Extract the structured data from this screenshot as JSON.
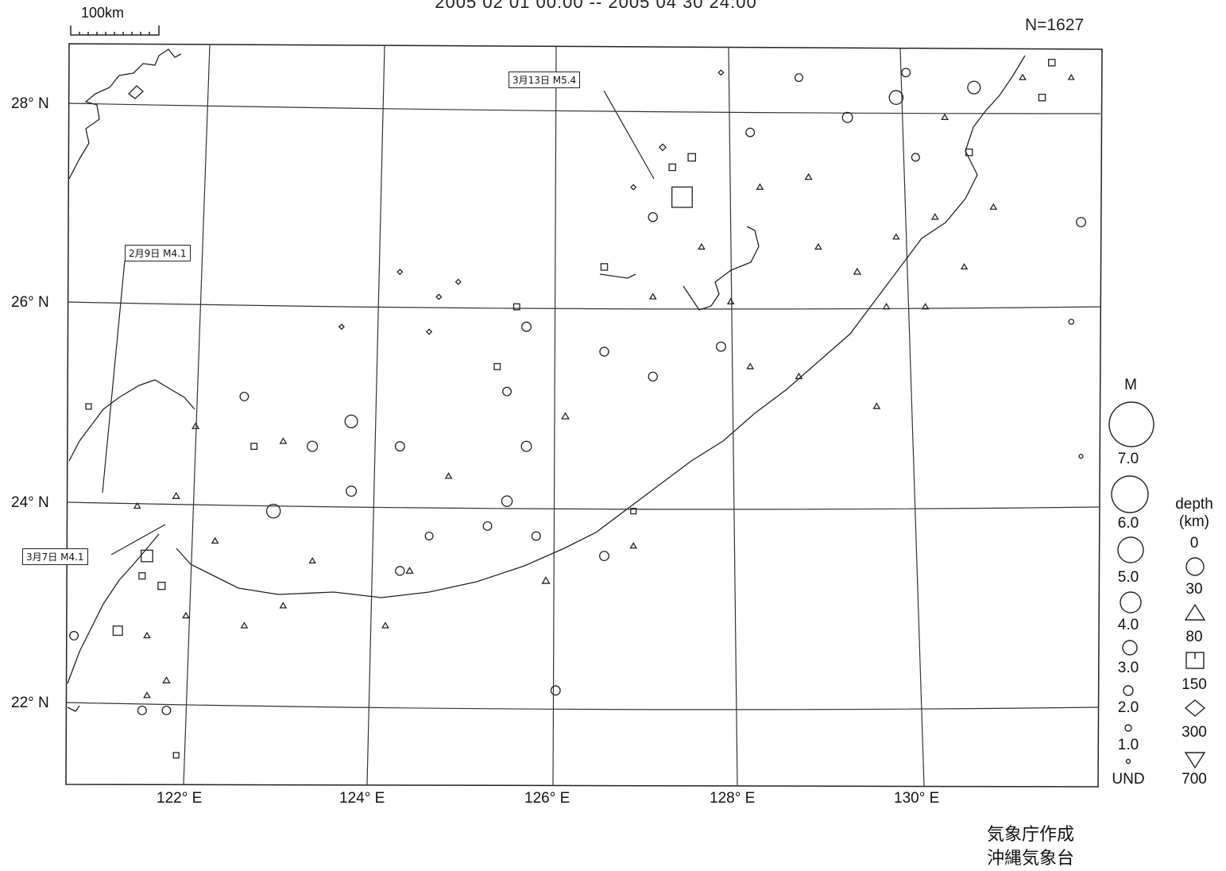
{
  "header": {
    "title": "2005 02 01 00:00 -- 2005 04 30 24:00",
    "count": "N=1627",
    "scale_label": "100km"
  },
  "axes": {
    "lat_labels": [
      "28° N",
      "26° N",
      "24° N",
      "22° N"
    ],
    "lon_labels": [
      "122° E",
      "124° E",
      "126° E",
      "128° E",
      "130° E"
    ]
  },
  "callouts": [
    {
      "text": "3月13日 M5.4"
    },
    {
      "text": "2月9日 M4.1"
    },
    {
      "text": "3月7日 M4.1"
    }
  ],
  "legend": {
    "magnitude_title": "M",
    "magnitude_labels": [
      "7.0",
      "6.0",
      "5.0",
      "4.0",
      "3.0",
      "2.0",
      "1.0",
      "UND"
    ],
    "depth_title_line1": "depth",
    "depth_title_line2": "(km)",
    "depth_labels": [
      "0",
      "30",
      "80",
      "150",
      "300",
      "700"
    ],
    "depth_symbols": [
      "circle",
      "triangle",
      "square",
      "diamond",
      "inverted-triangle"
    ]
  },
  "credit": {
    "line1": "気象庁作成",
    "line2": "沖縄気象台"
  },
  "map_data": {
    "lat_range": [
      21.2,
      28.6
    ],
    "lon_range": [
      120.8,
      131.4
    ],
    "events": [
      {
        "lon": 122.9,
        "lat": 23.95,
        "mag": 4.5,
        "depth": "circle"
      },
      {
        "lon": 123.7,
        "lat": 24.85,
        "mag": 4.3,
        "depth": "circle"
      },
      {
        "lon": 129.3,
        "lat": 28.1,
        "mag": 4.5,
        "depth": "circle"
      },
      {
        "lon": 130.1,
        "lat": 28.2,
        "mag": 4.3,
        "depth": "circle"
      },
      {
        "lon": 125.3,
        "lat": 24.05,
        "mag": 3.9,
        "depth": "circle"
      },
      {
        "lon": 124.2,
        "lat": 24.6,
        "mag": 3.6,
        "depth": "circle"
      },
      {
        "lon": 123.3,
        "lat": 24.6,
        "mag": 3.8,
        "depth": "circle"
      },
      {
        "lon": 123.7,
        "lat": 24.15,
        "mag": 3.8,
        "depth": "circle"
      },
      {
        "lon": 128.8,
        "lat": 27.9,
        "mag": 3.8,
        "depth": "circle"
      },
      {
        "lon": 125.5,
        "lat": 24.6,
        "mag": 3.8,
        "depth": "circle"
      },
      {
        "lon": 127.1,
        "lat": 27.1,
        "mag": 5.4,
        "depth": "square"
      },
      {
        "lon": 121.6,
        "lat": 23.5,
        "mag": 4.1,
        "depth": "square"
      },
      {
        "lon": 121.3,
        "lat": 22.75,
        "mag": 3.6,
        "depth": "square"
      },
      {
        "lon": 124.2,
        "lat": 23.35,
        "mag": 3.5,
        "depth": "circle"
      },
      {
        "lon": 126.3,
        "lat": 23.5,
        "mag": 3.6,
        "depth": "circle"
      },
      {
        "lon": 125.8,
        "lat": 22.15,
        "mag": 3.6,
        "depth": "circle"
      },
      {
        "lon": 131.2,
        "lat": 26.85,
        "mag": 3.6,
        "depth": "circle"
      },
      {
        "lon": 125.3,
        "lat": 25.15,
        "mag": 3.4,
        "depth": "circle"
      },
      {
        "lon": 126.8,
        "lat": 25.3,
        "mag": 3.5,
        "depth": "circle"
      },
      {
        "lon": 127.5,
        "lat": 25.6,
        "mag": 3.6,
        "depth": "circle"
      },
      {
        "lon": 125.5,
        "lat": 25.8,
        "mag": 3.6,
        "depth": "circle"
      },
      {
        "lon": 126.3,
        "lat": 25.55,
        "mag": 3.5,
        "depth": "circle"
      },
      {
        "lon": 121.55,
        "lat": 21.95,
        "mag": 3.4,
        "depth": "circle"
      },
      {
        "lon": 121.8,
        "lat": 21.95,
        "mag": 3.4,
        "depth": "circle"
      },
      {
        "lon": 120.85,
        "lat": 22.7,
        "mag": 3.4,
        "depth": "circle"
      },
      {
        "lon": 126.8,
        "lat": 26.9,
        "mag": 3.5,
        "depth": "circle"
      },
      {
        "lon": 127.8,
        "lat": 27.75,
        "mag": 3.4,
        "depth": "circle"
      },
      {
        "lon": 129.5,
        "lat": 27.5,
        "mag": 3.2,
        "depth": "circle"
      },
      {
        "lon": 125.1,
        "lat": 23.8,
        "mag": 3.4,
        "depth": "circle"
      },
      {
        "lon": 125.6,
        "lat": 23.7,
        "mag": 3.4,
        "depth": "circle"
      },
      {
        "lon": 124.5,
        "lat": 23.7,
        "mag": 3.2,
        "depth": "circle"
      },
      {
        "lon": 122.6,
        "lat": 25.1,
        "mag": 3.4,
        "depth": "circle"
      },
      {
        "lon": 129.4,
        "lat": 28.35,
        "mag": 3.4,
        "depth": "circle"
      },
      {
        "lon": 128.3,
        "lat": 28.3,
        "mag": 3.2,
        "depth": "circle"
      },
      {
        "lon": 121.9,
        "lat": 24.1,
        "mag": 2.8,
        "depth": "triangle"
      },
      {
        "lon": 125.9,
        "lat": 24.9,
        "mag": 2.9,
        "depth": "triangle"
      },
      {
        "lon": 128.9,
        "lat": 26.35,
        "mag": 2.8,
        "depth": "triangle"
      },
      {
        "lon": 129.6,
        "lat": 26.0,
        "mag": 2.6,
        "depth": "triangle"
      },
      {
        "lon": 128.4,
        "lat": 27.3,
        "mag": 2.7,
        "depth": "triangle"
      },
      {
        "lon": 130.3,
        "lat": 27.0,
        "mag": 2.6,
        "depth": "triangle"
      },
      {
        "lon": 125.7,
        "lat": 23.25,
        "mag": 3.0,
        "depth": "triangle"
      },
      {
        "lon": 124.3,
        "lat": 23.35,
        "mag": 2.8,
        "depth": "triangle"
      },
      {
        "lon": 122.3,
        "lat": 23.65,
        "mag": 2.6,
        "depth": "triangle"
      },
      {
        "lon": 123.0,
        "lat": 24.65,
        "mag": 2.6,
        "depth": "triangle"
      },
      {
        "lon": 124.7,
        "lat": 24.3,
        "mag": 2.6,
        "depth": "triangle"
      },
      {
        "lon": 128.3,
        "lat": 25.3,
        "mag": 2.6,
        "depth": "triangle"
      },
      {
        "lon": 129.1,
        "lat": 25.0,
        "mag": 2.6,
        "depth": "triangle"
      },
      {
        "lon": 127.8,
        "lat": 25.4,
        "mag": 2.6,
        "depth": "triangle"
      },
      {
        "lon": 121.5,
        "lat": 24.0,
        "mag": 2.6,
        "depth": "triangle"
      },
      {
        "lon": 121.6,
        "lat": 22.7,
        "mag": 2.6,
        "depth": "triangle"
      },
      {
        "lon": 121.8,
        "lat": 22.25,
        "mag": 2.8,
        "depth": "triangle"
      },
      {
        "lon": 121.6,
        "lat": 22.1,
        "mag": 2.6,
        "depth": "triangle"
      },
      {
        "lon": 123.3,
        "lat": 23.45,
        "mag": 2.5,
        "depth": "triangle"
      },
      {
        "lon": 124.05,
        "lat": 22.8,
        "mag": 2.6,
        "depth": "triangle"
      },
      {
        "lon": 123.0,
        "lat": 23.0,
        "mag": 2.6,
        "depth": "triangle"
      },
      {
        "lon": 122.6,
        "lat": 22.8,
        "mag": 2.6,
        "depth": "triangle"
      },
      {
        "lon": 122.0,
        "lat": 22.9,
        "mag": 2.6,
        "depth": "triangle"
      },
      {
        "lon": 127.9,
        "lat": 27.2,
        "mag": 2.6,
        "depth": "triangle"
      },
      {
        "lon": 128.5,
        "lat": 26.6,
        "mag": 2.6,
        "depth": "triangle"
      },
      {
        "lon": 126.8,
        "lat": 26.1,
        "mag": 2.6,
        "depth": "triangle"
      },
      {
        "lon": 129.3,
        "lat": 26.7,
        "mag": 2.5,
        "depth": "triangle"
      },
      {
        "lon": 129.2,
        "lat": 26.0,
        "mag": 2.6,
        "depth": "triangle"
      },
      {
        "lon": 130.0,
        "lat": 26.4,
        "mag": 2.5,
        "depth": "triangle"
      },
      {
        "lon": 129.8,
        "lat": 27.9,
        "mag": 2.6,
        "depth": "triangle"
      },
      {
        "lon": 130.6,
        "lat": 28.3,
        "mag": 2.6,
        "depth": "triangle"
      },
      {
        "lon": 131.1,
        "lat": 28.3,
        "mag": 2.4,
        "depth": "triangle"
      },
      {
        "lon": 129.7,
        "lat": 26.9,
        "mag": 2.6,
        "depth": "triangle"
      },
      {
        "lon": 126.6,
        "lat": 23.6,
        "mag": 2.6,
        "depth": "triangle"
      },
      {
        "lon": 127.3,
        "lat": 26.6,
        "mag": 2.6,
        "depth": "triangle"
      },
      {
        "lon": 127.6,
        "lat": 26.05,
        "mag": 2.6,
        "depth": "triangle"
      },
      {
        "lon": 122.1,
        "lat": 24.8,
        "mag": 2.7,
        "depth": "triangle"
      },
      {
        "lon": 121.75,
        "lat": 23.2,
        "mag": 3.0,
        "depth": "square"
      },
      {
        "lon": 121.55,
        "lat": 23.3,
        "mag": 2.7,
        "depth": "square"
      },
      {
        "lon": 127.2,
        "lat": 27.5,
        "mag": 3.1,
        "depth": "square"
      },
      {
        "lon": 127.0,
        "lat": 27.4,
        "mag": 2.8,
        "depth": "square"
      },
      {
        "lon": 126.3,
        "lat": 26.4,
        "mag": 2.8,
        "depth": "square"
      },
      {
        "lon": 130.05,
        "lat": 27.55,
        "mag": 2.8,
        "depth": "square"
      },
      {
        "lon": 130.8,
        "lat": 28.1,
        "mag": 2.8,
        "depth": "square"
      },
      {
        "lon": 130.9,
        "lat": 28.45,
        "mag": 2.8,
        "depth": "square"
      },
      {
        "lon": 125.2,
        "lat": 25.4,
        "mag": 2.6,
        "depth": "square"
      },
      {
        "lon": 126.6,
        "lat": 23.95,
        "mag": 2.4,
        "depth": "square"
      },
      {
        "lon": 125.4,
        "lat": 26.0,
        "mag": 2.6,
        "depth": "square"
      },
      {
        "lon": 122.7,
        "lat": 24.6,
        "mag": 2.6,
        "depth": "square"
      },
      {
        "lon": 121.0,
        "lat": 25.0,
        "mag": 2.4,
        "depth": "square"
      },
      {
        "lon": 121.9,
        "lat": 21.5,
        "mag": 2.4,
        "depth": "square"
      },
      {
        "lon": 126.9,
        "lat": 27.6,
        "mag": 2.8,
        "depth": "diamond"
      },
      {
        "lon": 126.6,
        "lat": 27.2,
        "mag": 2.2,
        "depth": "diamond"
      },
      {
        "lon": 127.5,
        "lat": 28.35,
        "mag": 2.2,
        "depth": "diamond"
      },
      {
        "lon": 124.2,
        "lat": 26.35,
        "mag": 2.2,
        "depth": "diamond"
      },
      {
        "lon": 124.6,
        "lat": 26.1,
        "mag": 2.2,
        "depth": "diamond"
      },
      {
        "lon": 124.8,
        "lat": 26.25,
        "mag": 2.2,
        "depth": "diamond"
      },
      {
        "lon": 123.6,
        "lat": 25.8,
        "mag": 2.2,
        "depth": "diamond"
      },
      {
        "lon": 124.5,
        "lat": 25.75,
        "mag": 2.2,
        "depth": "diamond"
      },
      {
        "lon": 131.1,
        "lat": 25.85,
        "mag": 2.2,
        "depth": "circle"
      },
      {
        "lon": 131.2,
        "lat": 24.5,
        "mag": 1.6,
        "depth": "circle"
      }
    ]
  }
}
